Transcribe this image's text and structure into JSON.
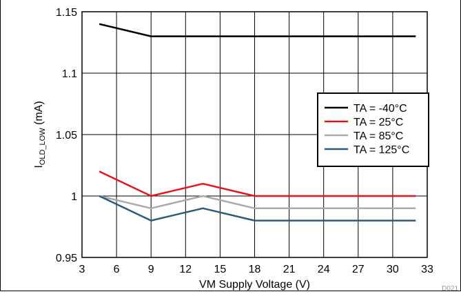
{
  "chart_data": {
    "type": "line",
    "title": "",
    "xlabel": "VM Supply Voltage (V)",
    "ylabel_main": "I",
    "ylabel_sub": "OLD_LOW",
    "ylabel_unit": " (mA)",
    "xlim": [
      3,
      33
    ],
    "ylim": [
      0.95,
      1.15
    ],
    "xticks": [
      3,
      6,
      9,
      12,
      15,
      18,
      21,
      24,
      27,
      30,
      33
    ],
    "yticks": [
      0.95,
      1,
      1.05,
      1.1,
      1.15
    ],
    "xtick_labels": [
      "3",
      "6",
      "9",
      "12",
      "15",
      "18",
      "21",
      "24",
      "27",
      "30",
      "33"
    ],
    "ytick_labels": [
      "0.95",
      "1",
      "1.05",
      "1.1",
      "1.15"
    ],
    "grid": true,
    "legend_position": "right",
    "figure_id": "D021",
    "x": [
      4.5,
      9,
      13.5,
      18,
      32
    ],
    "series": [
      {
        "name": "TA = -40°C",
        "color": "#000000",
        "values": [
          1.14,
          1.13,
          1.13,
          1.13,
          1.13
        ]
      },
      {
        "name": "TA = 25°C",
        "color": "#e8141c",
        "values": [
          1.02,
          1.0,
          1.01,
          1.0,
          1.0
        ]
      },
      {
        "name": "TA = 85°C",
        "color": "#aaaaaa",
        "values": [
          1.0,
          0.99,
          1.0,
          0.99,
          0.99
        ]
      },
      {
        "name": "TA = 125°C",
        "color": "#2e5a78",
        "values": [
          1.0,
          0.98,
          0.99,
          0.98,
          0.98
        ]
      }
    ]
  }
}
